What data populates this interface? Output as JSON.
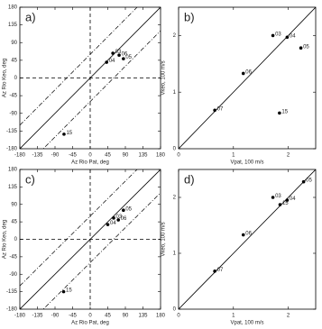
{
  "chart_data": [
    {
      "type": "scatter",
      "panel_label": "a)",
      "x_label": "Az Rio Pat, deg",
      "y_label": "Az Rio Keo, deg",
      "point_labels": [
        "15",
        "04",
        "03",
        "06",
        "05"
      ],
      "x": [
        -67,
        42,
        58,
        74,
        85
      ],
      "values": [
        -143,
        40,
        63,
        58,
        49
      ],
      "xlim": [
        -180,
        180
      ],
      "ylim": [
        -180,
        180
      ],
      "xticks": [
        -180,
        -135,
        -90,
        -45,
        0,
        45,
        90,
        135,
        180
      ],
      "yticks": [
        -180,
        -135,
        -90,
        -45,
        0,
        45,
        90,
        135,
        180
      ],
      "diagonal": true,
      "zero_lines": true,
      "band": 60,
      "color": "#000000"
    },
    {
      "type": "scatter",
      "panel_label": "b)",
      "x_label": "Vpat, 100 m/s",
      "y_label": "Vkeo, 100 m/s",
      "point_labels": [
        "07",
        "06",
        "03",
        "04",
        "05",
        "15"
      ],
      "x": [
        0.66,
        1.18,
        1.72,
        1.98,
        2.23,
        1.84
      ],
      "values": [
        0.68,
        1.33,
        2.0,
        1.97,
        1.78,
        0.63
      ],
      "xlim": [
        0,
        2.5
      ],
      "ylim": [
        0,
        2.5
      ],
      "xticks": [
        0,
        1,
        2
      ],
      "yticks": [
        0,
        1,
        2
      ],
      "diagonal": true,
      "zero_lines": false,
      "color": "#000000"
    },
    {
      "type": "scatter",
      "panel_label": "c)",
      "x_label": "Az Rio Pat, deg",
      "y_label": "Az Rio Keo, deg",
      "point_labels": [
        "15",
        "04",
        "03",
        "06",
        "05"
      ],
      "x": [
        -68,
        45,
        60,
        72,
        85
      ],
      "values": [
        -135,
        38,
        55,
        50,
        75
      ],
      "xlim": [
        -180,
        180
      ],
      "ylim": [
        -180,
        180
      ],
      "xticks": [
        -180,
        -135,
        -90,
        -45,
        0,
        45,
        90,
        135,
        180
      ],
      "yticks": [
        -180,
        -135,
        -90,
        -45,
        0,
        45,
        90,
        135,
        180
      ],
      "diagonal": true,
      "zero_lines": true,
      "band": 60,
      "color": "#000000"
    },
    {
      "type": "scatter",
      "panel_label": "d)",
      "x_label": "Vpat, 100 m/s",
      "y_label": "Vkeo, 100 m/s",
      "point_labels": [
        "07",
        "06",
        "03",
        "15",
        "04",
        "05"
      ],
      "x": [
        0.66,
        1.18,
        1.72,
        1.85,
        1.98,
        2.28
      ],
      "values": [
        0.68,
        1.33,
        2.0,
        1.87,
        1.95,
        2.28
      ],
      "xlim": [
        0,
        2.5
      ],
      "ylim": [
        0,
        2.5
      ],
      "xticks": [
        0,
        1,
        2
      ],
      "yticks": [
        0,
        1,
        2
      ],
      "diagonal": true,
      "zero_lines": false,
      "color": "#000000"
    }
  ]
}
